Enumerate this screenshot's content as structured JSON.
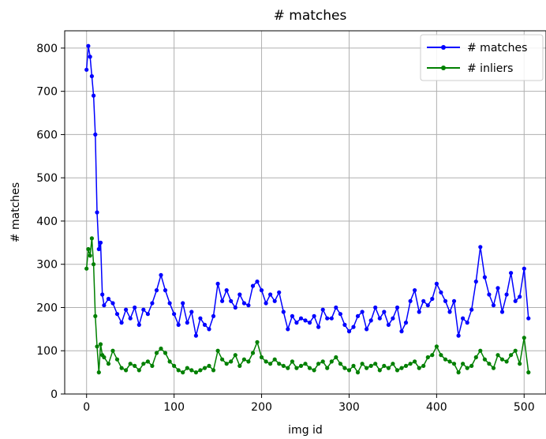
{
  "chart_data": {
    "type": "line",
    "title": "# matches",
    "xlabel": "img id",
    "ylabel": "# matches",
    "xlim": [
      -25,
      525
    ],
    "ylim": [
      0,
      840
    ],
    "xticks": [
      0,
      100,
      200,
      300,
      400,
      500
    ],
    "yticks": [
      0,
      100,
      200,
      300,
      400,
      500,
      600,
      700,
      800
    ],
    "grid": true,
    "legend_position": "top-right",
    "series": [
      {
        "name": "# matches",
        "color": "#0000ff",
        "x": [
          0,
          2,
          4,
          6,
          8,
          10,
          12,
          14,
          16,
          18,
          20,
          25,
          30,
          35,
          40,
          45,
          50,
          55,
          60,
          65,
          70,
          75,
          80,
          85,
          90,
          95,
          100,
          105,
          110,
          115,
          120,
          125,
          130,
          135,
          140,
          145,
          150,
          155,
          160,
          165,
          170,
          175,
          180,
          185,
          190,
          195,
          200,
          205,
          210,
          215,
          220,
          225,
          230,
          235,
          240,
          245,
          250,
          255,
          260,
          265,
          270,
          275,
          280,
          285,
          290,
          295,
          300,
          305,
          310,
          315,
          320,
          325,
          330,
          335,
          340,
          345,
          350,
          355,
          360,
          365,
          370,
          375,
          380,
          385,
          390,
          395,
          400,
          405,
          410,
          415,
          420,
          425,
          430,
          435,
          440,
          445,
          450,
          455,
          460,
          465,
          470,
          475,
          480,
          485,
          490,
          495,
          500,
          505
        ],
        "y": [
          750,
          805,
          780,
          735,
          690,
          600,
          420,
          335,
          350,
          230,
          205,
          220,
          210,
          185,
          165,
          195,
          175,
          200,
          160,
          195,
          185,
          210,
          240,
          275,
          240,
          210,
          185,
          160,
          210,
          165,
          190,
          135,
          175,
          160,
          150,
          180,
          255,
          215,
          240,
          215,
          200,
          230,
          210,
          205,
          250,
          260,
          240,
          210,
          230,
          215,
          235,
          190,
          150,
          180,
          165,
          175,
          170,
          165,
          180,
          155,
          195,
          175,
          175,
          200,
          185,
          160,
          145,
          155,
          180,
          190,
          150,
          170,
          200,
          175,
          190,
          160,
          175,
          200,
          145,
          165,
          215,
          240,
          190,
          215,
          205,
          220,
          255,
          235,
          215,
          190,
          215,
          135,
          175,
          165,
          195,
          260,
          340,
          270,
          230,
          205,
          245,
          190,
          230,
          280,
          215,
          225,
          290,
          175
        ]
      },
      {
        "name": "# inliers",
        "color": "#008000",
        "x": [
          0,
          2,
          4,
          6,
          8,
          10,
          12,
          14,
          16,
          18,
          20,
          25,
          30,
          35,
          40,
          45,
          50,
          55,
          60,
          65,
          70,
          75,
          80,
          85,
          90,
          95,
          100,
          105,
          110,
          115,
          120,
          125,
          130,
          135,
          140,
          145,
          150,
          155,
          160,
          165,
          170,
          175,
          180,
          185,
          190,
          195,
          200,
          205,
          210,
          215,
          220,
          225,
          230,
          235,
          240,
          245,
          250,
          255,
          260,
          265,
          270,
          275,
          280,
          285,
          290,
          295,
          300,
          305,
          310,
          315,
          320,
          325,
          330,
          335,
          340,
          345,
          350,
          355,
          360,
          365,
          370,
          375,
          380,
          385,
          390,
          395,
          400,
          405,
          410,
          415,
          420,
          425,
          430,
          435,
          440,
          445,
          450,
          455,
          460,
          465,
          470,
          475,
          480,
          485,
          490,
          495,
          500,
          505
        ],
        "y": [
          290,
          335,
          320,
          360,
          300,
          180,
          110,
          50,
          115,
          90,
          85,
          70,
          100,
          80,
          60,
          55,
          70,
          65,
          55,
          70,
          75,
          65,
          95,
          105,
          95,
          75,
          65,
          55,
          50,
          60,
          55,
          50,
          55,
          60,
          65,
          55,
          100,
          80,
          70,
          75,
          90,
          65,
          80,
          75,
          95,
          120,
          85,
          75,
          70,
          80,
          70,
          65,
          60,
          75,
          60,
          65,
          70,
          60,
          55,
          70,
          75,
          60,
          75,
          85,
          70,
          60,
          55,
          65,
          50,
          70,
          60,
          65,
          70,
          55,
          65,
          60,
          70,
          55,
          60,
          65,
          70,
          75,
          60,
          65,
          85,
          90,
          110,
          90,
          80,
          75,
          70,
          50,
          70,
          60,
          65,
          85,
          100,
          80,
          70,
          60,
          90,
          80,
          75,
          90,
          100,
          70,
          130,
          50
        ]
      }
    ]
  }
}
